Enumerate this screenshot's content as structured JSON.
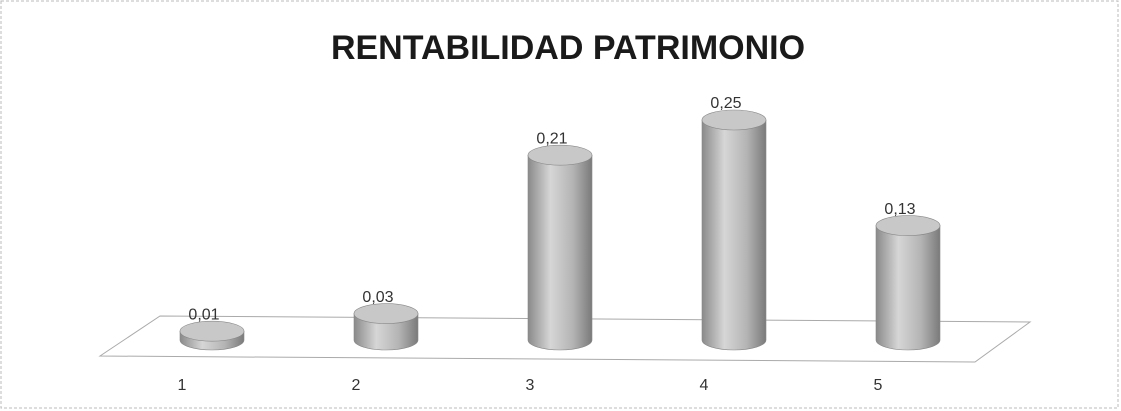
{
  "chart_data": {
    "type": "bar",
    "title": "RENTABILIDAD PATRIMONIO",
    "categories": [
      "1",
      "2",
      "3",
      "4",
      "5"
    ],
    "values": [
      0.01,
      0.03,
      0.21,
      0.25,
      0.13
    ],
    "value_labels": [
      "0,01",
      "0,03",
      "0,21",
      "0,25",
      "0,13"
    ],
    "color": "#b0b0b0"
  }
}
